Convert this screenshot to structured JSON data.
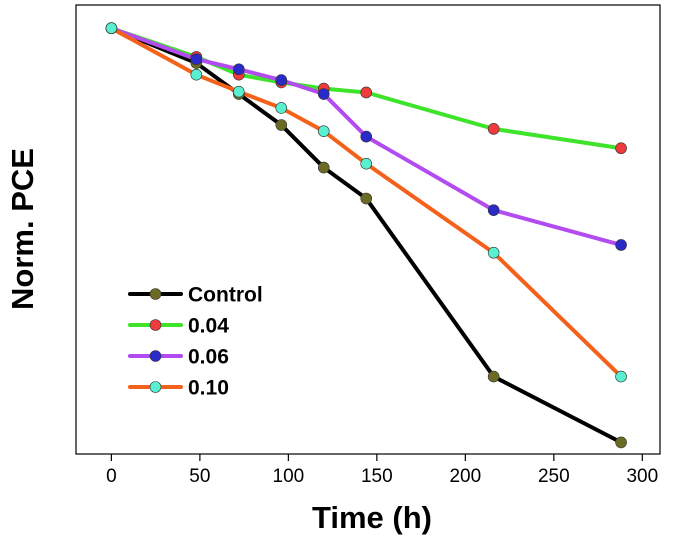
{
  "chart_data": {
    "type": "line",
    "title": "",
    "xlabel": "Time (h)",
    "ylabel": "Norm. PCE",
    "xlim": [
      -20,
      310
    ],
    "ylim": [
      0.45,
      1.03
    ],
    "x_ticks": [
      "0",
      "50",
      "100",
      "150",
      "200",
      "250",
      "300"
    ],
    "y_ticks_shown": false,
    "grid": false,
    "legend_position": "lower-left",
    "series": [
      {
        "name": "Control",
        "line_color": "#000000",
        "marker_color": "#6b6b24",
        "x": [
          0,
          48,
          72,
          96,
          120,
          144,
          216,
          288
        ],
        "y": [
          1.0,
          0.955,
          0.915,
          0.875,
          0.82,
          0.78,
          0.55,
          0.465
        ]
      },
      {
        "name": "0.04",
        "line_color": "#3ee32a",
        "marker_color": "#ef3b3b",
        "x": [
          0,
          48,
          72,
          96,
          120,
          144,
          216,
          288
        ],
        "y": [
          1.0,
          0.963,
          0.94,
          0.93,
          0.922,
          0.917,
          0.87,
          0.845
        ]
      },
      {
        "name": "0.06",
        "line_color": "#b24cf0",
        "marker_color": "#2a2ac9",
        "x": [
          0,
          48,
          72,
          96,
          120,
          144,
          216,
          288
        ],
        "y": [
          1.0,
          0.96,
          0.947,
          0.933,
          0.915,
          0.86,
          0.765,
          0.72
        ]
      },
      {
        "name": "0.10",
        "line_color": "#f4611a",
        "marker_color": "#58f0d0",
        "x": [
          0,
          48,
          72,
          96,
          120,
          144,
          216,
          288
        ],
        "y": [
          1.0,
          0.94,
          0.918,
          0.897,
          0.867,
          0.825,
          0.71,
          0.55
        ]
      }
    ]
  }
}
